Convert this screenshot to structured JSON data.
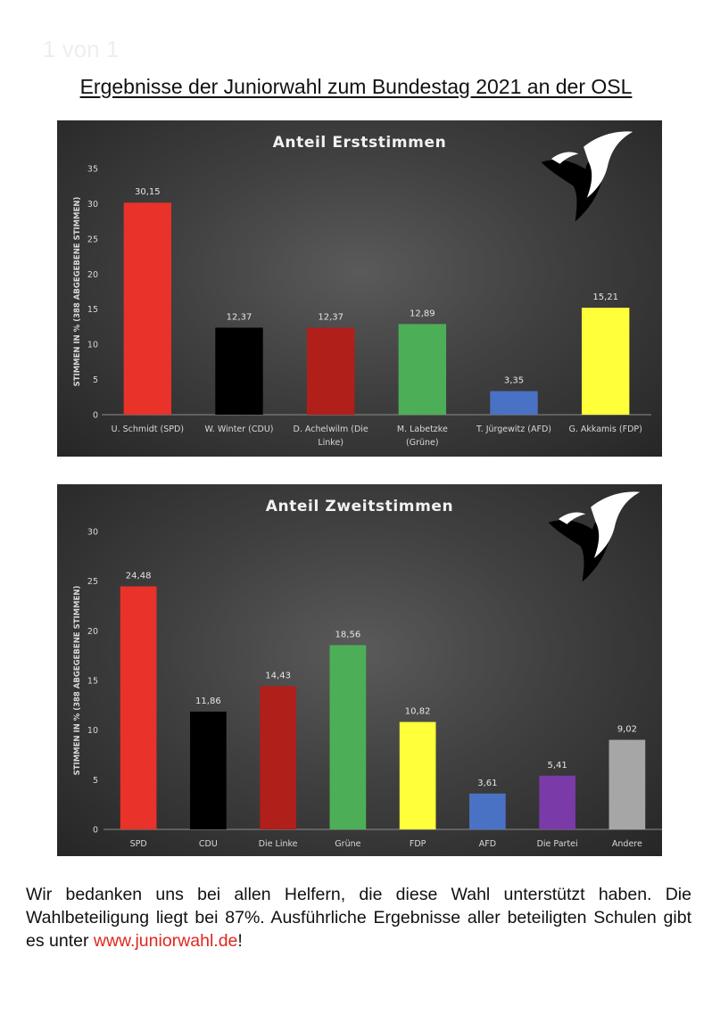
{
  "page": {
    "label": "1 von 1",
    "title": "Ergebnisse der Juniorwahl zum Bundestag 2021 an der OSL"
  },
  "footer": {
    "text_1": "Wir bedanken uns bei allen Helfern, die diese Wahl unterstützt haben. Die Wahlbeteiligung liegt bei 87%. Ausführliche Ergebnisse aller beteiligten Schulen gibt es unter ",
    "link": "www.juniorwahl.de",
    "text_2": "!"
  },
  "logo_icon": "bird-silhouette-icon",
  "chart_data": [
    {
      "type": "bar",
      "title": "Anteil Erststimmen",
      "ylabel": "STIMMEN IN % (388 ABGEGEBENE STIMMEN)",
      "xlabel": "",
      "ylim": [
        0,
        35
      ],
      "yticks": [
        0,
        5,
        10,
        15,
        20,
        25,
        30,
        35
      ],
      "grid": false,
      "categories": [
        [
          "U. Schmidt (SPD)"
        ],
        [
          "W. Winter (CDU)"
        ],
        [
          "D. Achelwilm (Die",
          "Linke)"
        ],
        [
          "M. Labetzke",
          "(Grüne)"
        ],
        [
          "T. Jürgewitz (AFD)"
        ],
        [
          "G. Akkamis (FDP)"
        ]
      ],
      "values": [
        30.15,
        12.37,
        12.37,
        12.89,
        3.35,
        15.21
      ],
      "value_labels": [
        "30,15",
        "12,37",
        "12,37",
        "12,89",
        "3,35",
        "15,21"
      ],
      "colors": [
        "#e8322a",
        "#000000",
        "#b01f1a",
        "#4caf57",
        "#4a72c4",
        "#ffff3a"
      ]
    },
    {
      "type": "bar",
      "title": "Anteil Zweitstimmen",
      "ylabel": "STIMMEN IN % (388 ABGEGEBENE STIMMEN)",
      "xlabel": "",
      "ylim": [
        0,
        30
      ],
      "yticks": [
        0,
        5,
        10,
        15,
        20,
        25,
        30
      ],
      "grid": false,
      "categories": [
        [
          "SPD"
        ],
        [
          "CDU"
        ],
        [
          "Die Linke"
        ],
        [
          "Grüne"
        ],
        [
          "FDP"
        ],
        [
          "AFD"
        ],
        [
          "Die Partei"
        ],
        [
          "Andere"
        ]
      ],
      "values": [
        24.48,
        11.86,
        14.43,
        18.56,
        10.82,
        3.61,
        5.41,
        9.02
      ],
      "value_labels": [
        "24,48",
        "11,86",
        "14,43",
        "18,56",
        "10,82",
        "3,61",
        "5,41",
        "9,02"
      ],
      "colors": [
        "#e8322a",
        "#000000",
        "#b01f1a",
        "#4caf57",
        "#ffff3a",
        "#4a72c4",
        "#7a3aa8",
        "#a6a6a6"
      ]
    }
  ]
}
